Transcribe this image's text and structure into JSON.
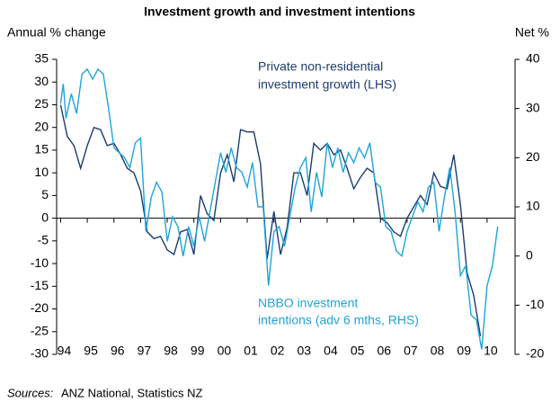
{
  "chart_data": {
    "type": "line",
    "title": "Investment growth and investment intentions",
    "y_label": "Annual % change",
    "y2_label": "Net %",
    "annotations": [
      "Private non-residential",
      "investment growth (LHS)",
      "NBBO investment",
      "intentions (adv 6 mths, RHS)"
    ],
    "source_label": "Sources:",
    "source": "ANZ National, Statistics NZ",
    "xlim": [
      1993.85,
      2011.05
    ],
    "xticks": [
      {
        "value": 1994,
        "label": "94"
      },
      {
        "value": 1995,
        "label": "95"
      },
      {
        "value": 1996,
        "label": "96"
      },
      {
        "value": 1997,
        "label": "97"
      },
      {
        "value": 1998,
        "label": "98"
      },
      {
        "value": 1999,
        "label": "99"
      },
      {
        "value": 2000,
        "label": "00"
      },
      {
        "value": 2001,
        "label": "01"
      },
      {
        "value": 2002,
        "label": "02"
      },
      {
        "value": 2003,
        "label": "03"
      },
      {
        "value": 2004,
        "label": "04"
      },
      {
        "value": 2005,
        "label": "05"
      },
      {
        "value": 2006,
        "label": "06"
      },
      {
        "value": 2007,
        "label": "07"
      },
      {
        "value": 2008,
        "label": "08"
      },
      {
        "value": 2009,
        "label": "09"
      },
      {
        "value": 2010,
        "label": "10"
      }
    ],
    "ylim": [
      -30,
      35
    ],
    "yticks": [
      -30,
      -25,
      -20,
      -15,
      -10,
      -5,
      0,
      5,
      10,
      15,
      20,
      25,
      30,
      35
    ],
    "y2lim": [
      -20,
      40
    ],
    "y2ticks": [
      -20,
      -10,
      0,
      10,
      20,
      30,
      40
    ],
    "series": [
      {
        "name": "Private non-residential investment growth (LHS)",
        "color": "#1b3d6e",
        "axis": "y",
        "x": [
          1994.0,
          1994.25,
          1994.5,
          1994.75,
          1995.0,
          1995.25,
          1995.5,
          1995.75,
          1996.0,
          1996.25,
          1996.5,
          1996.75,
          1997.0,
          1997.25,
          1997.5,
          1997.75,
          1998.0,
          1998.25,
          1998.5,
          1998.75,
          1999.0,
          1999.25,
          1999.5,
          1999.75,
          2000.0,
          2000.25,
          2000.5,
          2000.75,
          2001.0,
          2001.25,
          2001.5,
          2001.75,
          2002.0,
          2002.25,
          2002.5,
          2002.75,
          2003.0,
          2003.25,
          2003.5,
          2003.75,
          2004.0,
          2004.25,
          2004.5,
          2004.75,
          2005.0,
          2005.25,
          2005.5,
          2005.75,
          2006.0,
          2006.25,
          2006.5,
          2006.75,
          2007.0,
          2007.25,
          2007.5,
          2007.75,
          2008.0,
          2008.25,
          2008.5,
          2008.75,
          2009.0,
          2009.25,
          2009.5,
          2009.75
        ],
        "values": [
          25,
          18,
          16,
          11,
          16,
          20,
          19.5,
          16,
          16.5,
          14,
          11,
          10,
          6,
          -3,
          -4.5,
          -4,
          -7,
          -8,
          -3,
          -2.5,
          -8,
          5,
          1,
          -0.5,
          10,
          14,
          8,
          19.5,
          19,
          19,
          12,
          -9,
          1.5,
          -8,
          -2,
          10,
          10,
          5,
          16.5,
          15,
          16.5,
          14,
          15,
          11,
          6.5,
          9,
          11,
          10,
          0,
          -1,
          -3,
          -4,
          0,
          2.5,
          5,
          3,
          10,
          7,
          6.5,
          14,
          3,
          -12,
          -17,
          -26
        ]
      },
      {
        "name": "NBBO investment intentions (adv 6 mths, RHS)",
        "color": "#1ea5d8",
        "axis": "y2",
        "x": [
          1994.0,
          1994.1,
          1994.2,
          1994.4,
          1994.6,
          1994.8,
          1995.0,
          1995.2,
          1995.4,
          1995.6,
          1995.8,
          1996.0,
          1996.2,
          1996.4,
          1996.6,
          1996.8,
          1997.0,
          1997.2,
          1997.4,
          1997.6,
          1997.8,
          1998.0,
          1998.2,
          1998.4,
          1998.6,
          1998.8,
          1999.0,
          1999.2,
          1999.4,
          1999.6,
          2000.0,
          2000.2,
          2000.4,
          2000.6,
          2000.8,
          2001.0,
          2001.2,
          2001.4,
          2001.6,
          2001.8,
          2002.0,
          2002.2,
          2002.4,
          2002.6,
          2002.8,
          2003.0,
          2003.2,
          2003.4,
          2003.6,
          2003.8,
          2004.0,
          2004.2,
          2004.4,
          2004.6,
          2004.8,
          2005.0,
          2005.2,
          2005.4,
          2005.6,
          2005.8,
          2006.0,
          2006.2,
          2006.4,
          2006.6,
          2006.8,
          2007.0,
          2007.2,
          2007.4,
          2007.6,
          2007.8,
          2008.0,
          2008.2,
          2008.4,
          2008.6,
          2008.8,
          2009.0,
          2009.2,
          2009.4,
          2009.6,
          2009.8,
          2010.0,
          2010.2,
          2010.4
        ],
        "values": [
          31,
          35,
          28,
          33,
          29,
          37,
          38,
          36,
          38,
          37,
          30,
          22,
          21,
          20,
          18,
          23,
          24,
          5,
          12,
          15,
          13,
          3,
          8,
          6,
          0,
          6,
          2,
          8,
          3,
          9,
          21,
          17,
          22,
          18,
          17,
          14,
          19,
          10,
          10,
          -6,
          5,
          6,
          2,
          8,
          14,
          18,
          20,
          9,
          17,
          12,
          23,
          18,
          22,
          17,
          21,
          19,
          22,
          20,
          23,
          15,
          14,
          6,
          5,
          1,
          0,
          5,
          8,
          11,
          9,
          14,
          15,
          5,
          12,
          18,
          9,
          -4,
          -2,
          -12,
          -13,
          -19,
          -6,
          -2,
          6
        ]
      }
    ]
  }
}
